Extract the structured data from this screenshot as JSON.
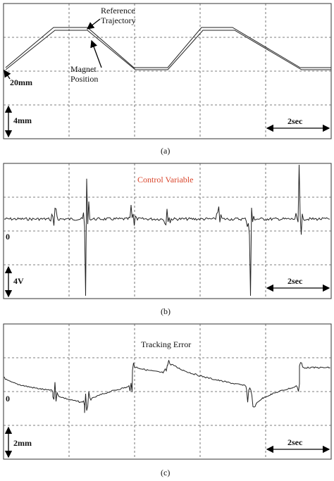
{
  "panels": [
    {
      "caption": "(a)",
      "reference_label": [
        "Reference",
        "Trajectory"
      ],
      "magnet_label": [
        "Magnet",
        "Position"
      ],
      "offset_label": "20mm",
      "scale_label": "4mm",
      "time_label": "2sec"
    },
    {
      "caption": "(b)",
      "title": "Control Variable",
      "zero_label": "0",
      "scale_label": "4V",
      "time_label": "2sec"
    },
    {
      "caption": "(c)",
      "title": "Tracking Error",
      "zero_label": "0",
      "scale_label": "2mm",
      "time_label": "2sec"
    }
  ]
}
